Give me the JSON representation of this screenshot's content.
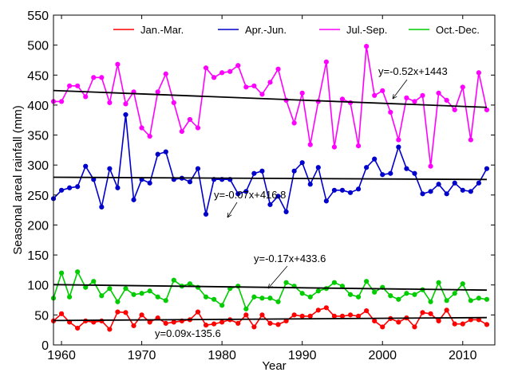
{
  "chart_data": {
    "type": "line",
    "xlabel": "Year",
    "ylabel": "Seasonal areal rainfall (mm)",
    "xlim": [
      1959,
      2014
    ],
    "ylim": [
      0,
      550
    ],
    "xticks": [
      1960,
      1970,
      1980,
      1990,
      2000,
      2010
    ],
    "yticks": [
      0,
      50,
      100,
      150,
      200,
      250,
      300,
      350,
      400,
      450,
      500,
      550
    ],
    "grid": false,
    "legend_position": "top",
    "x": [
      1959,
      1960,
      1961,
      1962,
      1963,
      1964,
      1965,
      1966,
      1967,
      1968,
      1969,
      1970,
      1971,
      1972,
      1973,
      1974,
      1975,
      1976,
      1977,
      1978,
      1979,
      1980,
      1981,
      1982,
      1983,
      1984,
      1985,
      1986,
      1987,
      1988,
      1989,
      1990,
      1991,
      1992,
      1993,
      1994,
      1995,
      1996,
      1997,
      1998,
      1999,
      2000,
      2001,
      2002,
      2003,
      2004,
      2005,
      2006,
      2007,
      2008,
      2009,
      2010,
      2011,
      2012,
      2013
    ],
    "series": [
      {
        "name": "Jan.-Mar.",
        "color": "#ff0000",
        "values": [
          40,
          52,
          38,
          28,
          40,
          38,
          40,
          26,
          55,
          54,
          32,
          50,
          38,
          45,
          36,
          38,
          40,
          42,
          55,
          33,
          35,
          38,
          42,
          36,
          50,
          30,
          50,
          36,
          34,
          40,
          50,
          48,
          48,
          58,
          62,
          48,
          48,
          50,
          48,
          57,
          40,
          30,
          44,
          38,
          45,
          30,
          54,
          52,
          40,
          58,
          35,
          35,
          42,
          42,
          34
        ]
      },
      {
        "name": "Apr.-Jun.",
        "color": "#0000cc",
        "values": [
          244,
          258,
          262,
          264,
          298,
          276,
          230,
          294,
          262,
          384,
          242,
          276,
          270,
          318,
          322,
          276,
          278,
          272,
          294,
          218,
          276,
          276,
          276,
          252,
          256,
          286,
          290,
          234,
          248,
          222,
          290,
          304,
          268,
          296,
          240,
          258,
          258,
          254,
          260,
          296,
          310,
          284,
          286,
          330,
          294,
          286,
          252,
          256,
          268,
          252,
          270,
          258,
          256,
          270,
          294
        ]
      },
      {
        "name": "Jul.-Sep.",
        "color": "#ff00ff",
        "values": [
          406,
          406,
          432,
          432,
          414,
          446,
          446,
          404,
          468,
          402,
          422,
          362,
          348,
          422,
          452,
          404,
          356,
          376,
          362,
          462,
          446,
          454,
          456,
          466,
          430,
          432,
          418,
          438,
          460,
          408,
          370,
          420,
          334,
          406,
          472,
          330,
          410,
          404,
          332,
          498,
          416,
          424,
          388,
          342,
          412,
          406,
          416,
          298,
          420,
          408,
          392,
          430,
          342,
          454,
          392
        ]
      },
      {
        "name": "Oct.-Dec.",
        "color": "#00cc00",
        "values": [
          78,
          120,
          80,
          122,
          96,
          106,
          82,
          94,
          72,
          94,
          84,
          86,
          90,
          80,
          74,
          108,
          98,
          102,
          96,
          80,
          76,
          66,
          94,
          98,
          60,
          80,
          78,
          78,
          72,
          104,
          98,
          86,
          80,
          90,
          94,
          104,
          98,
          84,
          80,
          106,
          88,
          96,
          82,
          76,
          86,
          84,
          92,
          72,
          104,
          74,
          86,
          102,
          74,
          78,
          76
        ]
      }
    ],
    "trend_lines": [
      {
        "series": "Jan.-Mar.",
        "equation": "y=0.09x-135.6",
        "slope": 0.09,
        "intercept": -135.6
      },
      {
        "series": "Apr.-Jun.",
        "equation": "y=-0.07x+416.8",
        "slope": -0.07,
        "intercept": 416.8
      },
      {
        "series": "Jul.-Sep.",
        "equation": "y=-0.52x+1443",
        "slope": -0.52,
        "intercept": 1443
      },
      {
        "series": "Oct.-Dec.",
        "equation": "y=-0.17x+433.6",
        "slope": -0.17,
        "intercept": 433.6
      }
    ],
    "trend_color": "#000000"
  }
}
